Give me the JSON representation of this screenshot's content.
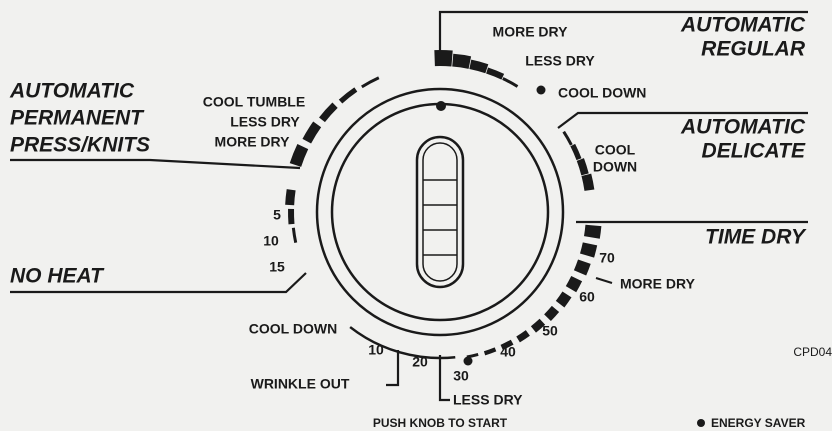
{
  "regular": {
    "title": [
      "AUTOMATIC",
      "REGULAR"
    ],
    "more_dry": "MORE DRY",
    "less_dry": "LESS DRY",
    "cool_down": "COOL DOWN"
  },
  "delicate": {
    "title": [
      "AUTOMATIC",
      "DELICATE"
    ],
    "cool_down": [
      "COOL",
      "DOWN"
    ]
  },
  "time_dry": {
    "title": "TIME DRY",
    "more_dry": "MORE DRY",
    "less_dry": "LESS DRY",
    "minutes": [
      70,
      60,
      50,
      40,
      30,
      20,
      10
    ]
  },
  "wrinkle_out": "WRINKLE OUT",
  "cool_down": "COOL DOWN",
  "no_heat": {
    "title": "NO HEAT",
    "minutes": [
      5,
      10,
      15
    ]
  },
  "permanent_press": {
    "title": [
      "AUTOMATIC",
      "PERMANENT",
      "PRESS/KNITS"
    ],
    "cool_tumble": "COOL TUMBLE",
    "less_dry": "LESS DRY",
    "more_dry": "MORE DRY"
  },
  "instruction": "PUSH KNOB TO START",
  "legend": "ENERGY SAVER",
  "code": "CPD04"
}
